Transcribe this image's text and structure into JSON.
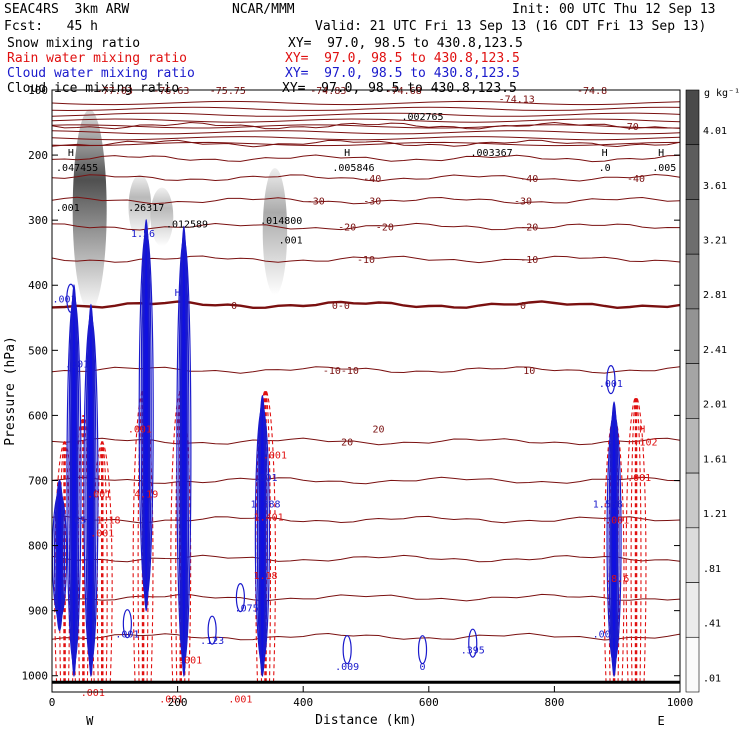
{
  "header": {
    "model": "SEAC4RS  3km ARW",
    "org": "NCAR/MMM",
    "init": "Init: 00 UTC Thu 12 Sep 13",
    "fcst": "Fcst:   45 h",
    "valid": "Valid: 21 UTC Fri 13 Sep 13 (16 CDT Fri 13 Sep 13)"
  },
  "legend": [
    {
      "label": "Snow mixing ratio",
      "xy": "XY=  97.0, 98.5 to 430.8,123.5",
      "color": "#000000"
    },
    {
      "label": "Rain water mixing ratio",
      "xy": "XY=  97.0, 98.5 to 430.8,123.5",
      "color": "#e01010"
    },
    {
      "label": "Cloud water mixing ratio",
      "xy": "XY=  97.0, 98.5 to 430.8,123.5",
      "color": "#1a1acc"
    },
    {
      "label": "Cloud ice mixing ratio",
      "xy": "XY=  97.0, 98.5 to 430.8,123.5",
      "color": "#000000"
    }
  ],
  "chart_data": {
    "type": "heatmap",
    "title": "",
    "xlabel": "Distance (km)",
    "ylabel": "Pressure (hPa)",
    "xlim": [
      0,
      1000
    ],
    "ylim": [
      1025,
      100
    ],
    "xticks": [
      "0",
      "200",
      "400",
      "600",
      "800",
      "1000"
    ],
    "yticks": [
      "100",
      "200",
      "300",
      "400",
      "500",
      "600",
      "700",
      "800",
      "900",
      "1000"
    ],
    "x_end_labels": {
      "left": "W",
      "right": "E"
    },
    "colorbar": {
      "unit": "g kg⁻¹",
      "labels": [
        "4.01",
        "3.61",
        "3.21",
        "2.81",
        "2.41",
        "2.01",
        "1.61",
        "1.21",
        ".81",
        ".41",
        ".01"
      ],
      "shades": [
        "#4a4a4a",
        "#5c5c5c",
        "#6e6e6e",
        "#808080",
        "#939393",
        "#a5a5a5",
        "#b7b7b7",
        "#c9c9c9",
        "#dbdbdb",
        "#ececec",
        "#fafafa"
      ]
    },
    "temperature_isotherms_C": {
      "color": "#7a1010",
      "levels": [
        -70,
        -60,
        -50,
        -40,
        -30,
        -20,
        -10,
        0,
        10,
        20
      ],
      "pressure_hPa": [
        155,
        182,
        205,
        235,
        270,
        310,
        360,
        430,
        530,
        640
      ],
      "labels": [
        {
          "x": 100,
          "p": 100,
          "text": "-77.03"
        },
        {
          "x": 190,
          "p": 100,
          "text": "-76.63"
        },
        {
          "x": 280,
          "p": 100,
          "text": "-75.75"
        },
        {
          "x": 440,
          "p": 100,
          "text": "-74.83"
        },
        {
          "x": 560,
          "p": 100,
          "text": "-74.68"
        },
        {
          "x": 740,
          "p": 113,
          "text": "-74.13"
        },
        {
          "x": 860,
          "p": 100,
          "text": "-74.8"
        },
        {
          "x": 920,
          "p": 155,
          "text": "-70"
        },
        {
          "x": 510,
          "p": 235,
          "text": "-40"
        },
        {
          "x": 760,
          "p": 235,
          "text": "-40"
        },
        {
          "x": 930,
          "p": 235,
          "text": "-40"
        },
        {
          "x": 420,
          "p": 270,
          "text": "-30"
        },
        {
          "x": 510,
          "p": 270,
          "text": "-30"
        },
        {
          "x": 750,
          "p": 270,
          "text": "-30"
        },
        {
          "x": 470,
          "p": 310,
          "text": "-20"
        },
        {
          "x": 530,
          "p": 310,
          "text": "-20"
        },
        {
          "x": 760,
          "p": 310,
          "text": "-20"
        },
        {
          "x": 500,
          "p": 360,
          "text": "-10"
        },
        {
          "x": 760,
          "p": 360,
          "text": "-10"
        },
        {
          "x": 290,
          "p": 430,
          "text": "0"
        },
        {
          "x": 460,
          "p": 430,
          "text": "0-0"
        },
        {
          "x": 750,
          "p": 430,
          "text": "0"
        },
        {
          "x": 460,
          "p": 530,
          "text": "-10-10"
        },
        {
          "x": 760,
          "p": 530,
          "text": "10"
        },
        {
          "x": 470,
          "p": 640,
          "text": "20"
        },
        {
          "x": 520,
          "p": 620,
          "text": "20"
        }
      ]
    },
    "extrema_labels": [
      {
        "x": 30,
        "p": 195,
        "text": "H",
        "color": "black"
      },
      {
        "x": 40,
        "p": 218,
        "text": ".047455",
        "color": "black"
      },
      {
        "x": 25,
        "p": 280,
        "text": ".001",
        "color": "black"
      },
      {
        "x": 150,
        "p": 280,
        "text": ".26317",
        "color": "black"
      },
      {
        "x": 215,
        "p": 305,
        "text": ".012589",
        "color": "black"
      },
      {
        "x": 365,
        "p": 300,
        "text": ".014800",
        "color": "black"
      },
      {
        "x": 380,
        "p": 330,
        "text": ".001",
        "color": "black"
      },
      {
        "x": 470,
        "p": 195,
        "text": "H",
        "color": "black"
      },
      {
        "x": 480,
        "p": 218,
        "text": ".005846",
        "color": "black"
      },
      {
        "x": 590,
        "p": 140,
        "text": ".002765",
        "color": "black"
      },
      {
        "x": 700,
        "p": 195,
        "text": ".003367",
        "color": "black"
      },
      {
        "x": 880,
        "p": 195,
        "text": "H",
        "color": "black"
      },
      {
        "x": 880,
        "p": 218,
        "text": ".0",
        "color": "black"
      },
      {
        "x": 970,
        "p": 195,
        "text": "H",
        "color": "black"
      },
      {
        "x": 975,
        "p": 218,
        "text": ".005",
        "color": "black"
      },
      {
        "x": 20,
        "p": 420,
        "text": ".001",
        "color": "blue"
      },
      {
        "x": 40,
        "p": 520,
        "text": ".001",
        "color": "blue"
      },
      {
        "x": 200,
        "p": 410,
        "text": "H",
        "color": "blue"
      },
      {
        "x": 310,
        "p": 895,
        "text": ".075",
        "color": "blue"
      },
      {
        "x": 255,
        "p": 945,
        "text": ".123",
        "color": "blue"
      },
      {
        "x": 120,
        "p": 935,
        "text": ".001",
        "color": "blue"
      },
      {
        "x": 470,
        "p": 985,
        "text": ".009",
        "color": "blue"
      },
      {
        "x": 590,
        "p": 985,
        "text": "0",
        "color": "blue"
      },
      {
        "x": 670,
        "p": 960,
        "text": ".395",
        "color": "blue"
      },
      {
        "x": 890,
        "p": 550,
        "text": ".001",
        "color": "blue"
      },
      {
        "x": 885,
        "p": 735,
        "text": "1.568",
        "color": "blue"
      },
      {
        "x": 880,
        "p": 935,
        "text": ".001",
        "color": "blue"
      },
      {
        "x": 40,
        "p": 760,
        "text": ".65",
        "color": "blue"
      },
      {
        "x": 340,
        "p": 735,
        "text": "1.288",
        "color": "blue"
      },
      {
        "x": 340,
        "p": 695,
        "text": ".001",
        "color": "blue"
      },
      {
        "x": 145,
        "p": 320,
        "text": "1.56",
        "color": "blue"
      },
      {
        "x": 75,
        "p": 720,
        "text": ".001",
        "color": "red"
      },
      {
        "x": 90,
        "p": 760,
        "text": "1.18",
        "color": "red"
      },
      {
        "x": 80,
        "p": 780,
        "text": ".001",
        "color": "red"
      },
      {
        "x": 150,
        "p": 720,
        "text": "4.19",
        "color": "red"
      },
      {
        "x": 140,
        "p": 620,
        "text": ".001",
        "color": "red"
      },
      {
        "x": 355,
        "p": 660,
        "text": ".001",
        "color": "red"
      },
      {
        "x": 345,
        "p": 755,
        "text": "1.401",
        "color": "red"
      },
      {
        "x": 340,
        "p": 845,
        "text": "1.18",
        "color": "red"
      },
      {
        "x": 900,
        "p": 850,
        "text": ".8.6",
        "color": "red"
      },
      {
        "x": 900,
        "p": 760,
        "text": ".001",
        "color": "red"
      },
      {
        "x": 935,
        "p": 695,
        "text": ".001",
        "color": "red"
      },
      {
        "x": 940,
        "p": 620,
        "text": "H",
        "color": "red"
      },
      {
        "x": 945,
        "p": 640,
        "text": ".102",
        "color": "red"
      },
      {
        "x": 65,
        "p": 1025,
        "text": ".001",
        "color": "red"
      },
      {
        "x": 190,
        "p": 1035,
        "text": ".001",
        "color": "red"
      },
      {
        "x": 220,
        "p": 975,
        "text": ".001",
        "color": "red"
      },
      {
        "x": 300,
        "p": 1035,
        "text": ".001",
        "color": "red"
      }
    ],
    "cloud_ice_shading": [
      {
        "x": 60,
        "p_top": 130,
        "p_bot": 440,
        "peak": 4.0
      },
      {
        "x": 140,
        "p_top": 230,
        "p_bot": 330,
        "peak": 1.2
      },
      {
        "x": 175,
        "p_top": 250,
        "p_bot": 340,
        "peak": 1.2
      },
      {
        "x": 355,
        "p_top": 220,
        "p_bot": 415,
        "peak": 1.6
      }
    ],
    "cloud_water_columns": [
      {
        "x": 12,
        "p_top": 700,
        "p_bot": 930
      },
      {
        "x": 35,
        "p_top": 400,
        "p_bot": 1000
      },
      {
        "x": 62,
        "p_top": 430,
        "p_bot": 1000
      },
      {
        "x": 150,
        "p_top": 300,
        "p_bot": 900
      },
      {
        "x": 210,
        "p_top": 310,
        "p_bot": 1000
      },
      {
        "x": 335,
        "p_top": 570,
        "p_bot": 1000
      },
      {
        "x": 895,
        "p_top": 580,
        "p_bot": 1000
      }
    ],
    "rain_columns": [
      {
        "x": 20,
        "p_top": 640,
        "p_bot": 1010
      },
      {
        "x": 50,
        "p_top": 600,
        "p_bot": 1010
      },
      {
        "x": 80,
        "p_top": 640,
        "p_bot": 1010
      },
      {
        "x": 145,
        "p_top": 560,
        "p_bot": 1010
      },
      {
        "x": 205,
        "p_top": 560,
        "p_bot": 1010
      },
      {
        "x": 340,
        "p_top": 560,
        "p_bot": 1010
      },
      {
        "x": 895,
        "p_top": 600,
        "p_bot": 1010
      },
      {
        "x": 930,
        "p_top": 570,
        "p_bot": 1010
      }
    ]
  }
}
